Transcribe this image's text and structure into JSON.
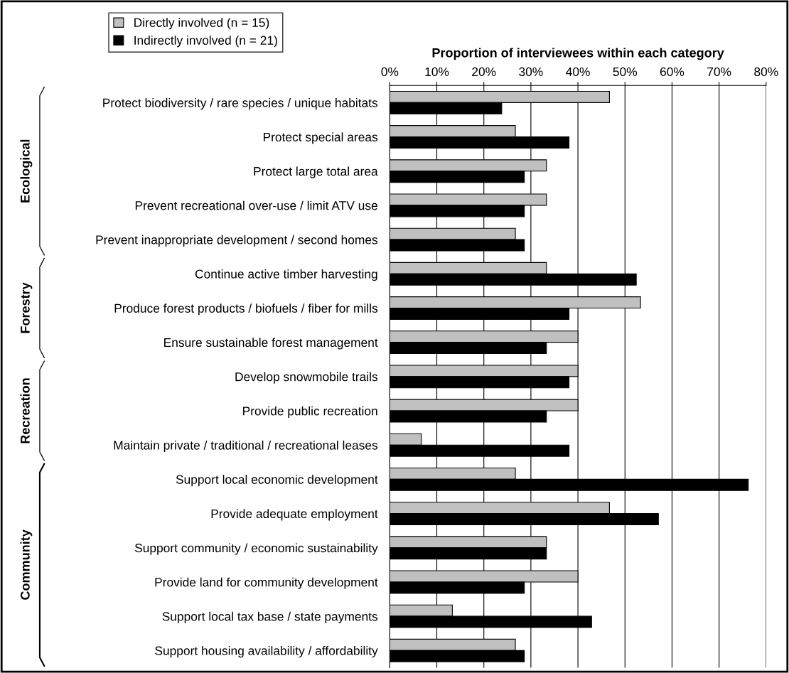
{
  "chart_data": {
    "type": "bar",
    "orientation": "horizontal",
    "xlabel": "Proportion of interviewees within each category",
    "categories": [
      "Protect biodiversity / rare species / unique habitats",
      "Protect special areas",
      "Protect large total area",
      "Prevent recreational over-use / limit ATV use",
      "Prevent inappropriate development / second homes",
      "Continue active timber harvesting",
      "Produce forest products / biofuels / fiber for mills",
      "Ensure sustainable forest management",
      "Develop snowmobile trails",
      "Provide public recreation",
      "Maintain private / traditional / recreational leases",
      "Support local economic development",
      "Provide adequate employment",
      "Support community / economic sustainability",
      "Provide land for community development",
      "Support local tax base / state payments",
      "Support housing availability / affordability"
    ],
    "series": [
      {
        "name": "Directly involved (n = 15)",
        "color": "#c0c0c0",
        "values": [
          46.7,
          26.7,
          33.3,
          33.3,
          26.7,
          33.3,
          53.3,
          40.0,
          40.0,
          40.0,
          6.7,
          26.7,
          46.7,
          33.3,
          40.0,
          13.3,
          26.7
        ]
      },
      {
        "name": "Indirectly involved (n = 21)",
        "color": "#000000",
        "values": [
          23.8,
          38.1,
          28.6,
          28.6,
          28.6,
          52.4,
          38.1,
          33.3,
          38.1,
          33.3,
          38.1,
          76.2,
          57.1,
          33.3,
          28.6,
          42.9,
          28.6
        ]
      }
    ],
    "xlim": [
      0,
      80
    ],
    "xticks": [
      {
        "value": 0,
        "label": "0%"
      },
      {
        "value": 10,
        "label": "10%"
      },
      {
        "value": 20,
        "label": "20%"
      },
      {
        "value": 30,
        "label": "30%"
      },
      {
        "value": 40,
        "label": "40%"
      },
      {
        "value": 50,
        "label": "50%"
      },
      {
        "value": 60,
        "label": "60%"
      },
      {
        "value": 70,
        "label": "70%"
      },
      {
        "value": 80,
        "label": "80%"
      }
    ],
    "grid": "x",
    "legend": "top left",
    "annotations": [
      "Ecological",
      "Forestry",
      "Recreation",
      "Community"
    ]
  }
}
